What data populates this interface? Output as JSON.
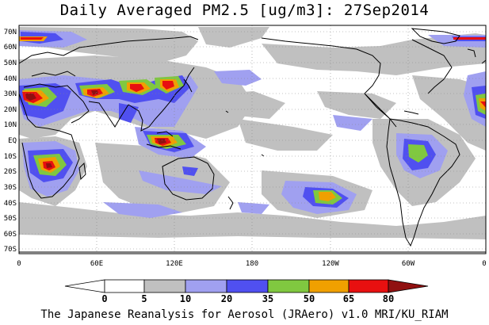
{
  "title": "Daily Averaged PM2.5 [ug/m3]: 27Sep2014",
  "credit": "The Japanese Reanalysis for Aerosol (JRAero) v1.0 MRI/KU_RIAM",
  "lat_labels": [
    "70N",
    "60N",
    "50N",
    "40N",
    "30N",
    "20N",
    "10N",
    "EQ",
    "10S",
    "20S",
    "30S",
    "40S",
    "50S",
    "60S",
    "70S"
  ],
  "lon_labels": [
    "0",
    "60E",
    "120E",
    "180",
    "120W",
    "60W",
    "0"
  ],
  "colorbar": {
    "thresholds": [
      "0",
      "5",
      "10",
      "20",
      "35",
      "50",
      "65",
      "80"
    ],
    "colors": [
      "#ffffff",
      "#ffffff",
      "#c0c0c0",
      "#a0a0f0",
      "#5050f0",
      "#80c840",
      "#f0a000",
      "#e81010",
      "#901010"
    ]
  },
  "legend_colors": {
    "level1": "#c0c0c0",
    "level2": "#a0a0f0",
    "level3": "#5050f0",
    "level4": "#80c840",
    "level5": "#f0a000",
    "level6": "#e81010",
    "level7": "#901010"
  }
}
